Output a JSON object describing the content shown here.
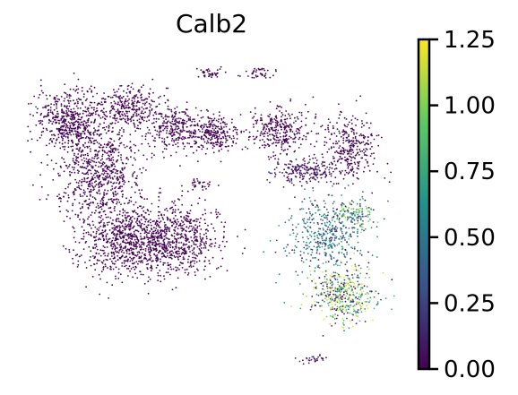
{
  "chart_data": {
    "type": "scatter",
    "title": "Calb2",
    "xlabel": "",
    "ylabel": "",
    "grid": false,
    "colormap": "viridis",
    "colorbar": {
      "vmin": 0.0,
      "vmax": 1.25,
      "ticks": [
        "0.00",
        "0.25",
        "0.50",
        "0.75",
        "1.00",
        "1.25"
      ],
      "tick_values": [
        0.0,
        0.25,
        0.5,
        0.75,
        1.0,
        1.25
      ],
      "colors": [
        "#440154",
        "#3b528b",
        "#21918c",
        "#5ec962",
        "#fde725"
      ]
    },
    "clusters": [
      {
        "cx": 0.12,
        "cy": 0.78,
        "rx": 0.09,
        "ry": 0.1,
        "n": 520,
        "level": 0.0
      },
      {
        "cx": 0.2,
        "cy": 0.62,
        "rx": 0.11,
        "ry": 0.16,
        "n": 700,
        "level": 0.0
      },
      {
        "cx": 0.28,
        "cy": 0.82,
        "rx": 0.08,
        "ry": 0.07,
        "n": 300,
        "level": 0.0
      },
      {
        "cx": 0.26,
        "cy": 0.4,
        "rx": 0.12,
        "ry": 0.12,
        "n": 650,
        "level": 0.0
      },
      {
        "cx": 0.4,
        "cy": 0.4,
        "rx": 0.13,
        "ry": 0.12,
        "n": 700,
        "level": 0.0
      },
      {
        "cx": 0.4,
        "cy": 0.76,
        "rx": 0.07,
        "ry": 0.07,
        "n": 260,
        "level": 0.0
      },
      {
        "cx": 0.5,
        "cy": 0.74,
        "rx": 0.07,
        "ry": 0.06,
        "n": 260,
        "level": 0.0
      },
      {
        "cx": 0.49,
        "cy": 0.93,
        "rx": 0.03,
        "ry": 0.02,
        "n": 40,
        "level": 0.0
      },
      {
        "cx": 0.47,
        "cy": 0.58,
        "rx": 0.03,
        "ry": 0.02,
        "n": 30,
        "level": 0.0
      },
      {
        "cx": 0.67,
        "cy": 0.75,
        "rx": 0.08,
        "ry": 0.07,
        "n": 300,
        "level": 0.0
      },
      {
        "cx": 0.86,
        "cy": 0.7,
        "rx": 0.08,
        "ry": 0.1,
        "n": 320,
        "level": 0.0
      },
      {
        "cx": 0.74,
        "cy": 0.62,
        "rx": 0.09,
        "ry": 0.04,
        "n": 200,
        "level": 0.05
      },
      {
        "cx": 0.8,
        "cy": 0.42,
        "rx": 0.1,
        "ry": 0.12,
        "n": 420,
        "level": 0.55
      },
      {
        "cx": 0.84,
        "cy": 0.22,
        "rx": 0.09,
        "ry": 0.09,
        "n": 420,
        "level": 0.95
      },
      {
        "cx": 0.88,
        "cy": 0.48,
        "rx": 0.05,
        "ry": 0.05,
        "n": 120,
        "level": 0.8
      },
      {
        "cx": 0.62,
        "cy": 0.93,
        "rx": 0.04,
        "ry": 0.02,
        "n": 40,
        "level": 0.0
      },
      {
        "cx": 0.77,
        "cy": 0.02,
        "rx": 0.04,
        "ry": 0.01,
        "n": 30,
        "level": 0.1
      }
    ]
  }
}
